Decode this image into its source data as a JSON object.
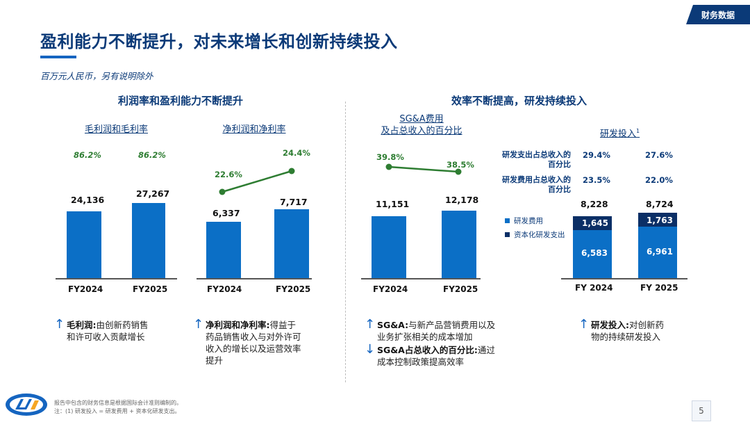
{
  "tag": "财务数据",
  "title": "盈利能力不断提升，对未来增长和创新持续投入",
  "subtitle": "百万元人民币，另有说明除外",
  "left_section": "利润率和盈利能力不断提升",
  "right_section": "效率不断提高，研发持续投入",
  "colors": {
    "bar": "#0b6fc6",
    "bar_dark": "#0b2f66",
    "line": "#2e7d32",
    "navy": "#0b3a78"
  },
  "chart_data": [
    {
      "type": "bar",
      "title": "毛利润和毛利率",
      "categories": [
        "FY2024",
        "FY2025"
      ],
      "values": [
        24136,
        27267
      ],
      "value_labels": [
        "24,136",
        "27,267"
      ],
      "rate_labels": [
        "86.2%",
        "86.2%"
      ]
    },
    {
      "type": "bar",
      "title": "净利润和净利率",
      "categories": [
        "FY2024",
        "FY2025"
      ],
      "values": [
        6337,
        7717
      ],
      "value_labels": [
        "6,337",
        "7,717"
      ],
      "rate": [
        22.6,
        24.4
      ],
      "rate_labels": [
        "22.6%",
        "24.4%"
      ]
    },
    {
      "type": "bar",
      "title_line1": "SG&A费用",
      "title_line2": "及占总收入的百分比",
      "categories": [
        "FY2024",
        "FY2025"
      ],
      "values": [
        11151,
        12178
      ],
      "value_labels": [
        "11,151",
        "12,178"
      ],
      "rate": [
        39.8,
        38.5
      ],
      "rate_labels": [
        "39.8%",
        "38.5%"
      ]
    },
    {
      "type": "bar",
      "title": "研发投入",
      "title_sup": "1",
      "categories": [
        "FY 2024",
        "FY 2025"
      ],
      "series": [
        {
          "name": "研发费用",
          "values": [
            6583,
            6961
          ],
          "labels": [
            "6,583",
            "6,961"
          ]
        },
        {
          "name": "资本化研发支出",
          "values": [
            1645,
            1763
          ],
          "labels": [
            "1,645",
            "1,763"
          ]
        }
      ],
      "totals": [
        "8,228",
        "8,724"
      ],
      "ratio_rows": [
        {
          "label_l1": "研发支出占总收入的",
          "label_l2": "百分比",
          "values": [
            "29.4%",
            "27.6%"
          ]
        },
        {
          "label_l1": "研发费用占总收入的",
          "label_l2": "百分比",
          "values": [
            "23.5%",
            "22.0%"
          ]
        }
      ]
    }
  ],
  "notes": [
    {
      "arrow": "↑",
      "bold": "毛利润:",
      "text_l1": "由创新药销售",
      "text_l2": "和许可收入贡献增长"
    },
    {
      "arrow": "↑",
      "bold": "净利润和净利率:",
      "text_l1": "得益于",
      "text_l2": "药品销售收入与对外许可",
      "text_l3": "收入的增长以及运营效率",
      "text_l4": "提升"
    },
    {
      "arrow": "↑",
      "bold": "SG&A:",
      "text_l1": "与新产品营销费用以及",
      "text_l2": "业务扩张相关的成本增加"
    },
    {
      "arrow": "↓",
      "bold": "SG&A占总收入的百分比:",
      "text_l1": "通过",
      "text_l2": "成本控制政策提高效率"
    },
    {
      "arrow": "↑",
      "bold": "研发投入:",
      "text_l1": "对创新药",
      "text_l2": "物的持续研发投入"
    }
  ],
  "footnote_1": "报告中包含的财务信息是根据国际会计准则编制的。",
  "footnote_2": "注：(1) 研发投入 = 研发费用 + 资本化研发支出。",
  "page_number": "5"
}
